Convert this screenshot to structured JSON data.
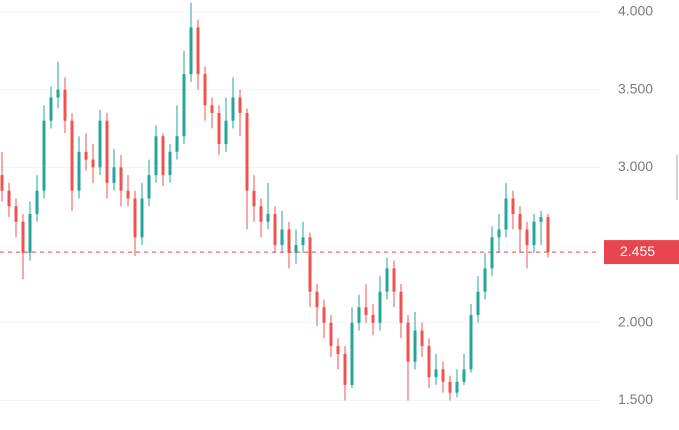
{
  "chart_data": {
    "type": "candlestick",
    "up_color": "#26a69a",
    "down_color": "#ef5350",
    "grid": true,
    "ylim": [
      1.31,
      4.077
    ],
    "yticks": [
      {
        "value": 1.5,
        "label": "1.500"
      },
      {
        "value": 2,
        "label": "2.000"
      },
      {
        "value": 3,
        "label": "3.000"
      },
      {
        "value": 3.5,
        "label": "3.500"
      },
      {
        "value": 4,
        "label": "4.000"
      }
    ],
    "last_price": 2.455,
    "last_price_color": "#e8464f",
    "open": [
      2.95,
      2.85,
      2.75,
      2.65,
      2.45,
      2.7,
      2.85,
      3.3,
      3.45,
      3.5,
      3.3,
      2.85,
      3.1,
      3.05,
      3.0,
      3.3,
      2.9,
      3.0,
      2.85,
      2.8,
      2.55,
      2.8,
      2.95,
      3.2,
      2.95,
      3.1,
      3.2,
      3.6,
      3.9,
      3.6,
      3.4,
      3.35,
      3.15,
      3.3,
      3.45,
      3.35,
      2.85,
      2.75,
      2.65,
      2.7,
      2.5,
      2.6,
      2.45,
      2.5,
      2.55,
      2.2,
      2.1,
      2.0,
      1.85,
      1.8,
      1.6,
      2.0,
      2.1,
      2.05,
      2.0,
      2.2,
      2.35,
      2.2,
      2.0,
      1.75,
      1.95,
      1.85,
      1.65,
      1.7,
      1.62,
      1.55,
      1.62,
      1.7,
      2.05,
      2.2,
      2.35,
      2.55,
      2.6,
      2.8,
      2.7,
      2.6,
      2.5,
      2.65,
      2.68
    ],
    "high": [
      3.1,
      2.9,
      2.8,
      2.7,
      2.78,
      2.95,
      3.4,
      3.52,
      3.68,
      3.58,
      3.35,
      3.2,
      3.22,
      3.15,
      3.37,
      3.35,
      3.12,
      3.08,
      2.95,
      2.85,
      2.9,
      3.05,
      3.27,
      3.22,
      3.15,
      3.4,
      3.75,
      4.06,
      3.95,
      3.65,
      3.45,
      3.4,
      3.45,
      3.58,
      3.5,
      3.38,
      2.95,
      2.8,
      2.9,
      2.75,
      2.72,
      2.65,
      2.6,
      2.65,
      2.58,
      2.25,
      2.15,
      2.05,
      1.9,
      1.85,
      2.1,
      2.18,
      2.25,
      2.12,
      2.3,
      2.42,
      2.4,
      2.25,
      2.05,
      2.07,
      2.0,
      1.9,
      1.8,
      1.75,
      1.66,
      1.7,
      1.8,
      2.12,
      2.3,
      2.45,
      2.62,
      2.7,
      2.9,
      2.85,
      2.75,
      2.65,
      2.7,
      2.72,
      2.7
    ],
    "low": [
      2.78,
      2.68,
      2.55,
      2.28,
      2.4,
      2.65,
      2.8,
      3.25,
      3.38,
      3.22,
      2.72,
      2.8,
      2.98,
      2.9,
      2.95,
      2.8,
      2.85,
      2.75,
      2.75,
      2.43,
      2.5,
      2.75,
      2.9,
      2.88,
      2.9,
      3.05,
      3.15,
      3.55,
      3.5,
      3.3,
      3.25,
      3.08,
      3.1,
      3.25,
      3.2,
      2.6,
      2.65,
      2.55,
      2.6,
      2.45,
      2.45,
      2.35,
      2.38,
      2.45,
      2.1,
      1.98,
      1.9,
      1.78,
      1.7,
      1.5,
      1.58,
      1.95,
      2.0,
      1.92,
      1.95,
      2.15,
      2.1,
      1.9,
      1.5,
      1.7,
      1.78,
      1.58,
      1.6,
      1.55,
      1.5,
      1.52,
      1.6,
      1.68,
      2.0,
      2.15,
      2.3,
      2.45,
      2.55,
      2.6,
      2.45,
      2.35,
      2.45,
      2.5,
      2.42
    ],
    "close": [
      2.85,
      2.75,
      2.65,
      2.45,
      2.7,
      2.85,
      3.3,
      3.45,
      3.5,
      3.3,
      2.85,
      3.1,
      3.05,
      3.0,
      3.3,
      2.9,
      3.0,
      2.85,
      2.8,
      2.55,
      2.8,
      2.95,
      3.2,
      2.95,
      3.1,
      3.2,
      3.6,
      3.9,
      3.6,
      3.4,
      3.35,
      3.15,
      3.3,
      3.45,
      3.35,
      2.85,
      2.75,
      2.65,
      2.7,
      2.5,
      2.6,
      2.45,
      2.5,
      2.55,
      2.2,
      2.1,
      2.0,
      1.85,
      1.8,
      1.6,
      2.0,
      2.1,
      2.05,
      2.0,
      2.2,
      2.35,
      2.2,
      2.0,
      1.75,
      1.95,
      1.85,
      1.65,
      1.7,
      1.62,
      1.55,
      1.62,
      1.7,
      2.05,
      2.2,
      2.35,
      2.55,
      2.6,
      2.8,
      2.7,
      2.6,
      2.5,
      2.65,
      2.68,
      2.455
    ]
  }
}
